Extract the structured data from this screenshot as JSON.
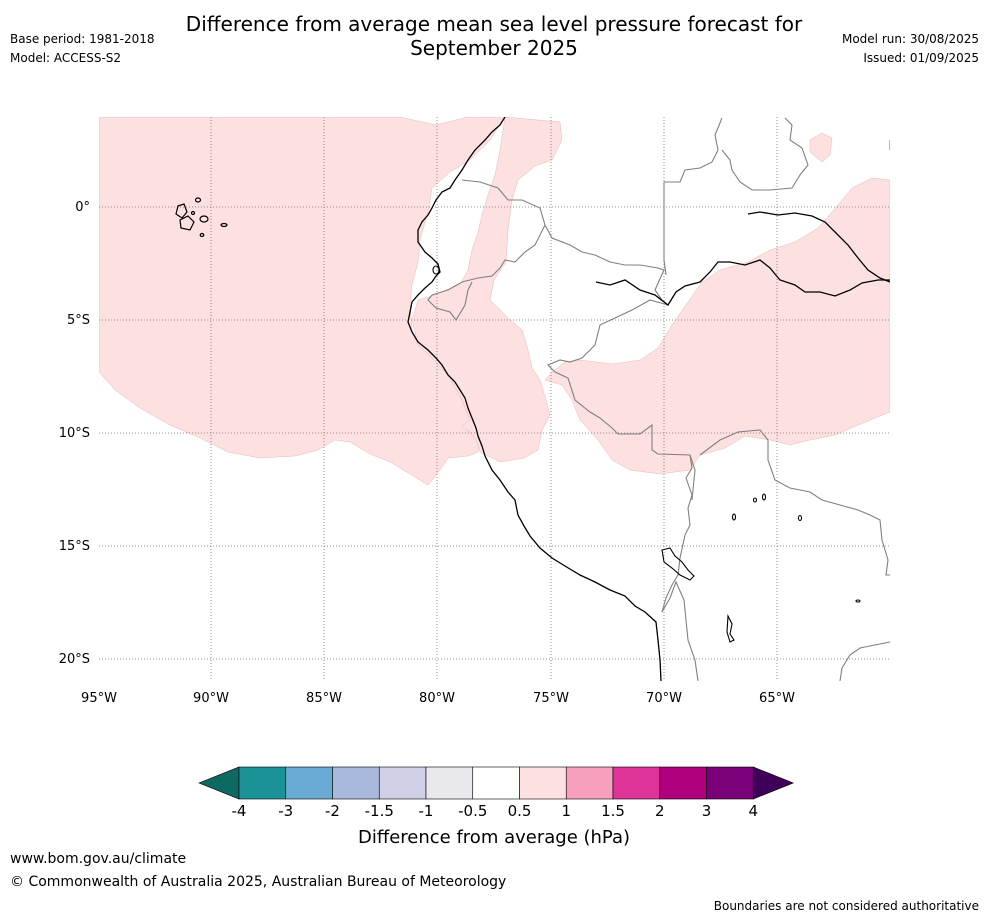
{
  "header": {
    "title_line1": "Difference from average mean sea level pressure forecast for",
    "title_line2": "September 2025",
    "base_period": "Base period: 1981-2018",
    "model": "Model: ACCESS-S2",
    "model_run": "Model run: 30/08/2025",
    "issued": "Issued: 01/09/2025"
  },
  "map": {
    "lat_labels": [
      "0°",
      "5°S",
      "10°S",
      "15°S",
      "20°S"
    ],
    "lon_labels": [
      "95°W",
      "90°W",
      "85°W",
      "80°W",
      "75°W",
      "70°W",
      "65°W"
    ],
    "land_line_color": "#000000",
    "border_color": "#808080",
    "gridline_style": "dotted"
  },
  "colorbar": {
    "title": "Difference from average (hPa)",
    "tick_labels": [
      "-4",
      "-3",
      "-2",
      "-1.5",
      "-1",
      "-0.5",
      "0.5",
      "1",
      "1.5",
      "2",
      "3",
      "4"
    ],
    "colors": [
      "#0d6a63",
      "#1a9297",
      "#6aabd3",
      "#a8b9db",
      "#cfd0e6",
      "#e9e8ec",
      "#ffffff",
      "#fde0e0",
      "#f7a0bd",
      "#de3499",
      "#b0007e",
      "#7a0079",
      "#3f005a"
    ]
  },
  "footer": {
    "url": "www.bom.gov.au/climate",
    "copyright": "© Commonwealth of Australia 2025, Australian Bureau of Meteorology",
    "disclaimer": "Boundaries are not considered authoritative"
  }
}
